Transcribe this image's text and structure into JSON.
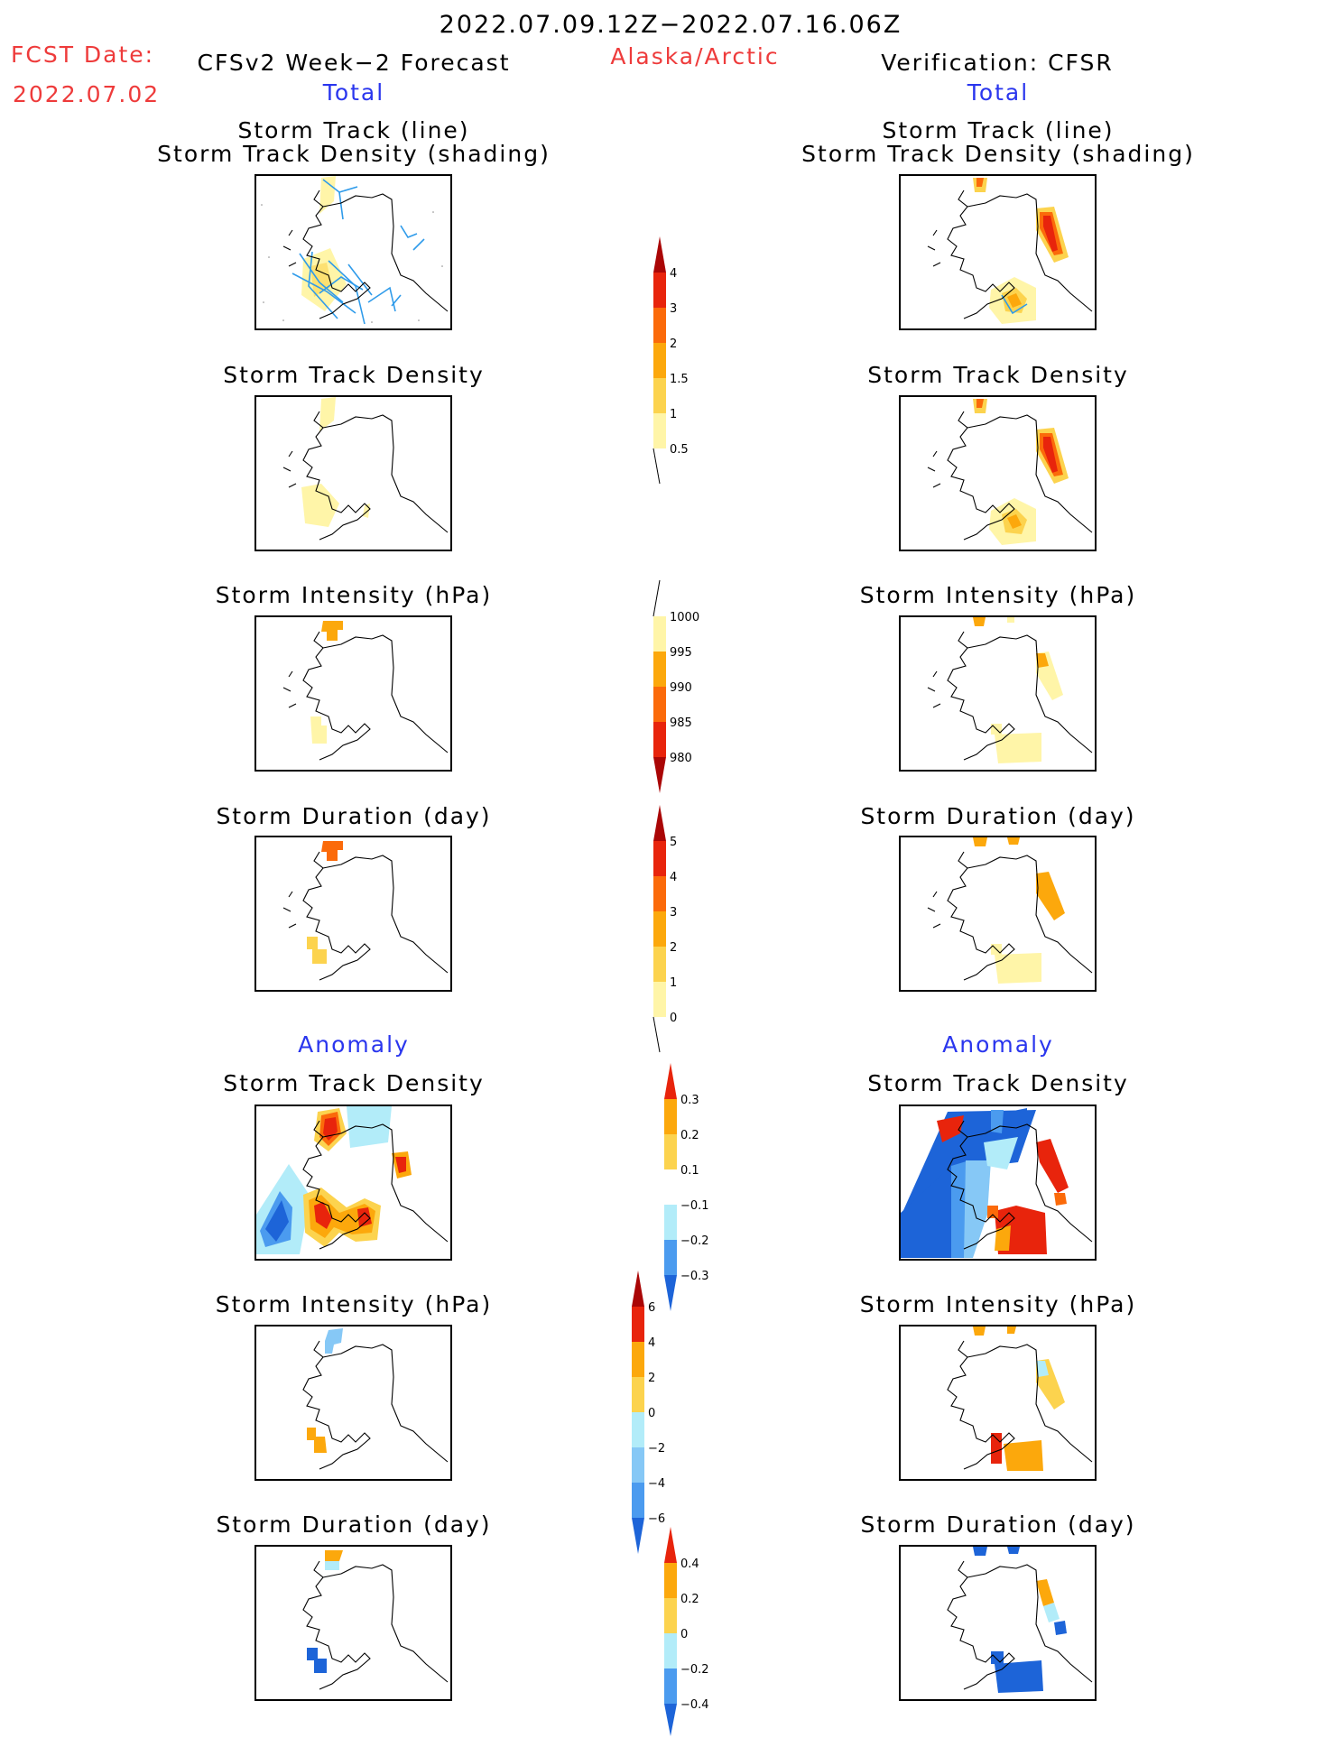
{
  "header": {
    "period": "2022.07.09.12Z−2022.07.16.06Z",
    "region": "Alaska/Arctic",
    "fcst_label": "FCST Date:",
    "fcst_date": "2022.07.02",
    "left_title": "CFSv2 Week−2 Forecast",
    "right_title": "Verification: CFSR",
    "total_label": "Total",
    "anomaly_label": "Anomaly"
  },
  "panel_titles": {
    "track_line": "Storm Track (line)",
    "track_shading": "Storm Track Density (shading)",
    "density": "Storm Track Density",
    "intensity": "Storm Intensity (hPa)",
    "duration": "Storm Duration (day)"
  },
  "colorbars": {
    "density_total": [
      "4",
      "3",
      "2",
      "1.5",
      "1",
      "0.5"
    ],
    "intensity_total": [
      "1000",
      "995",
      "990",
      "985",
      "980"
    ],
    "duration_total": [
      "5",
      "4",
      "3",
      "2",
      "1",
      "0"
    ],
    "density_anom": [
      "0.3",
      "0.2",
      "0.1",
      "−0.1",
      "−0.2",
      "−0.3"
    ],
    "intensity_anom": [
      "6",
      "4",
      "2",
      "0",
      "−2",
      "−4",
      "−6"
    ],
    "duration_anom": [
      "0.4",
      "0.2",
      "0",
      "−0.2",
      "−0.4"
    ]
  },
  "colors": {
    "warm": [
      "#fff5a8",
      "#fcd34e",
      "#fca80c",
      "#fb6a0a",
      "#e8240c",
      "#aa0606"
    ],
    "cool": [
      "#b2ecf9",
      "#86c8f6",
      "#4b9bef",
      "#1d64d8"
    ],
    "track_line": "#2f9bea",
    "title_red": "#ee3b3b",
    "title_blue": "#2a36ee"
  }
}
